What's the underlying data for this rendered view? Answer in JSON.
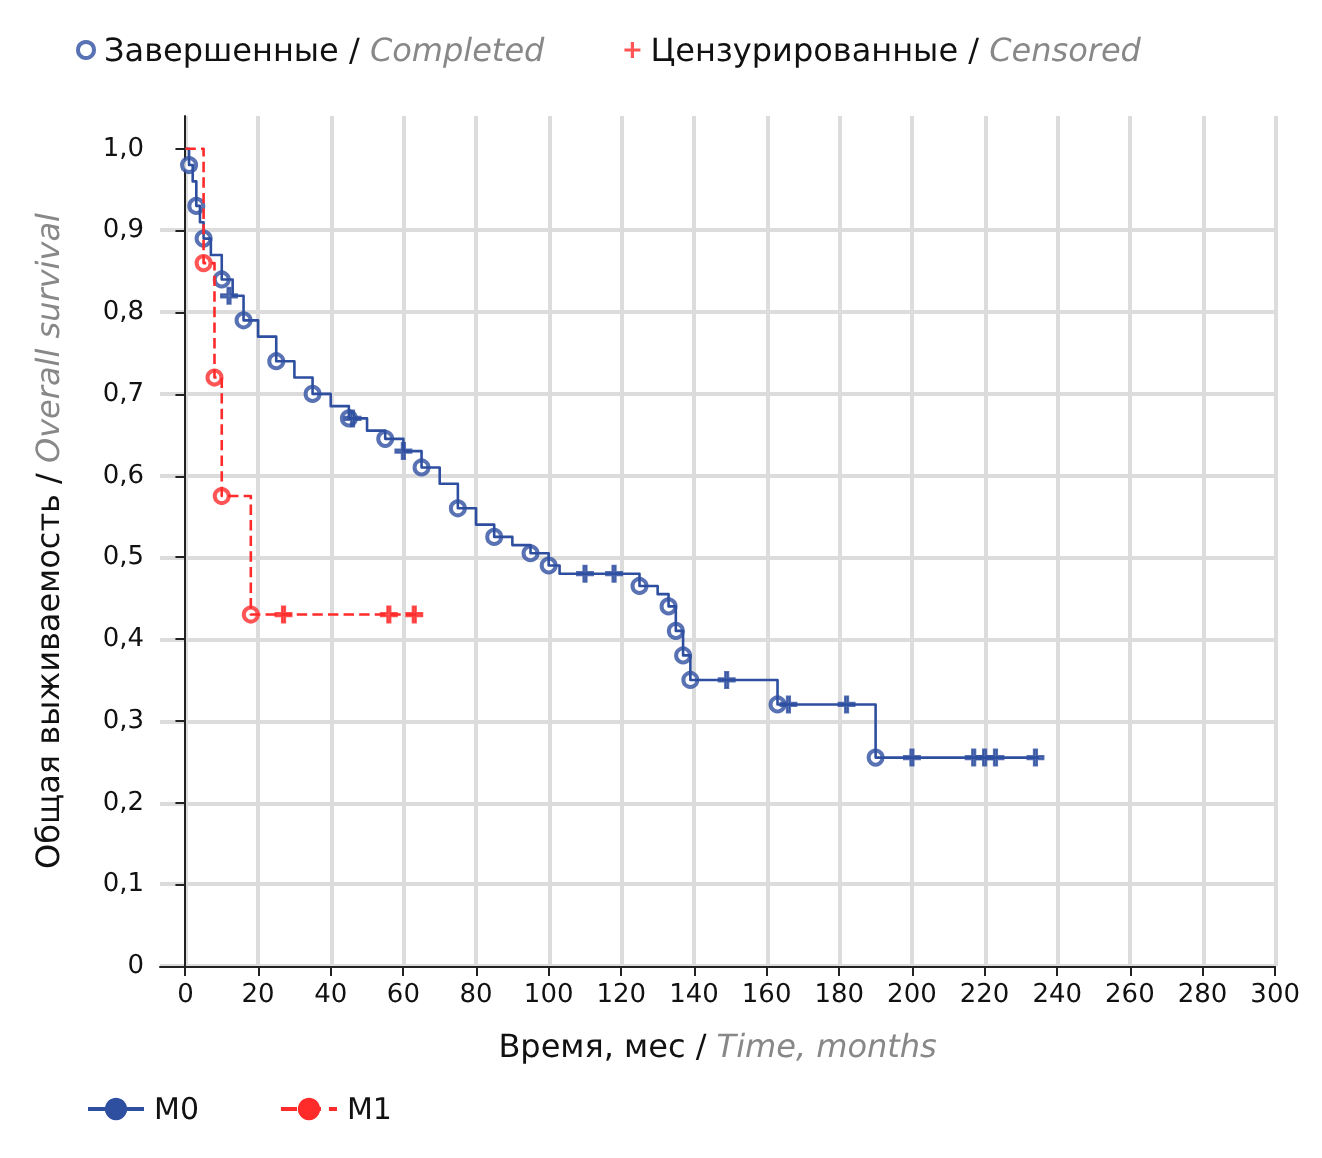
{
  "chart_data": {
    "type": "step",
    "xlabel": "Время, мес / Time, months",
    "ylabel": "Общая выживаемость / Overall survival",
    "xlim": [
      -7,
      300
    ],
    "xticks": [
      0,
      20,
      40,
      60,
      80,
      100,
      120,
      140,
      160,
      180,
      200,
      220,
      240,
      260,
      280,
      300
    ],
    "ylim": [
      0,
      1.04
    ],
    "yticks": [
      0,
      {
        "value": 0.1,
        "label": "0,1"
      },
      {
        "value": 0.2,
        "label": "0,2"
      },
      {
        "value": 0.3,
        "label": "0,3"
      },
      {
        "value": 0.4,
        "label": "0,4"
      },
      {
        "value": 0.5,
        "label": "0,5"
      },
      {
        "value": 0.6,
        "label": "0,6"
      },
      {
        "value": 0.7,
        "label": "0,7"
      },
      {
        "value": 0.8,
        "label": "0,8"
      },
      {
        "value": 0.9,
        "label": "0,9"
      },
      {
        "value": 1,
        "label": "1,0"
      }
    ],
    "grid": true,
    "legend": "bottom left",
    "series": [
      {
        "name": "M0",
        "color": "#2e4fa0",
        "line_style": "solid",
        "x": [
          0,
          1,
          2,
          3,
          4,
          5,
          7,
          10,
          13,
          16,
          20,
          25,
          30,
          35,
          40,
          45,
          50,
          55,
          60,
          65,
          70,
          75,
          80,
          85,
          90,
          95,
          100,
          103,
          125,
          130,
          133,
          135,
          137,
          139,
          163,
          190,
          235
        ],
        "values": [
          1,
          0.98,
          0.96,
          0.93,
          0.91,
          0.89,
          0.87,
          0.84,
          0.82,
          0.79,
          0.77,
          0.74,
          0.72,
          0.7,
          0.685,
          0.67,
          0.655,
          0.645,
          0.63,
          0.61,
          0.59,
          0.56,
          0.54,
          0.525,
          0.515,
          0.505,
          0.49,
          0.48,
          0.465,
          0.455,
          0.44,
          0.41,
          0.38,
          0.35,
          0.32,
          0.255,
          0.255
        ]
      },
      {
        "name": "M1",
        "color": "#ff2a2a",
        "line_style": "dashed",
        "x": [
          0,
          5,
          8,
          10,
          18,
          65
        ],
        "values": [
          1,
          0.86,
          0.72,
          0.575,
          0.43,
          0.43
        ]
      },
      {
        "name": "Завершенные / Completed",
        "type": "scatter",
        "marker": "circle",
        "color": "#2e4fa0",
        "x": [
          1,
          3,
          5,
          10,
          16,
          25,
          35,
          45,
          55,
          65,
          75,
          85,
          95,
          100,
          125,
          133,
          135,
          137,
          139,
          163,
          190,
          5,
          8,
          10,
          18
        ],
        "values": [
          0.98,
          0.93,
          0.89,
          0.84,
          0.79,
          0.74,
          0.7,
          0.67,
          0.645,
          0.61,
          0.56,
          0.525,
          0.505,
          0.49,
          0.465,
          0.44,
          0.41,
          0.38,
          0.35,
          0.32,
          0.255,
          0.86,
          0.72,
          0.575,
          0.43
        ],
        "colors": [
          "#2e4fa0",
          "#2e4fa0",
          "#2e4fa0",
          "#2e4fa0",
          "#2e4fa0",
          "#2e4fa0",
          "#2e4fa0",
          "#2e4fa0",
          "#2e4fa0",
          "#2e4fa0",
          "#2e4fa0",
          "#2e4fa0",
          "#2e4fa0",
          "#2e4fa0",
          "#2e4fa0",
          "#2e4fa0",
          "#2e4fa0",
          "#2e4fa0",
          "#2e4fa0",
          "#2e4fa0",
          "#2e4fa0",
          "#ff2a2a",
          "#ff2a2a",
          "#ff2a2a",
          "#ff2a2a"
        ]
      },
      {
        "name": "Цензурированные / Censored",
        "type": "scatter",
        "marker": "cross",
        "color": "#ff2a2a",
        "x": [
          12,
          46,
          60,
          110,
          118,
          149,
          166,
          182,
          200,
          217,
          220,
          223,
          234,
          27,
          56,
          63
        ],
        "values": [
          0.82,
          0.67,
          0.63,
          0.48,
          0.48,
          0.35,
          0.32,
          0.32,
          0.255,
          0.255,
          0.255,
          0.255,
          0.255,
          0.43,
          0.43,
          0.43
        ],
        "colors": [
          "#2e4fa0",
          "#2e4fa0",
          "#2e4fa0",
          "#2e4fa0",
          "#2e4fa0",
          "#2e4fa0",
          "#2e4fa0",
          "#2e4fa0",
          "#2e4fa0",
          "#2e4fa0",
          "#2e4fa0",
          "#2e4fa0",
          "#2e4fa0",
          "#ff2a2a",
          "#ff2a2a",
          "#ff2a2a"
        ]
      }
    ]
  }
}
